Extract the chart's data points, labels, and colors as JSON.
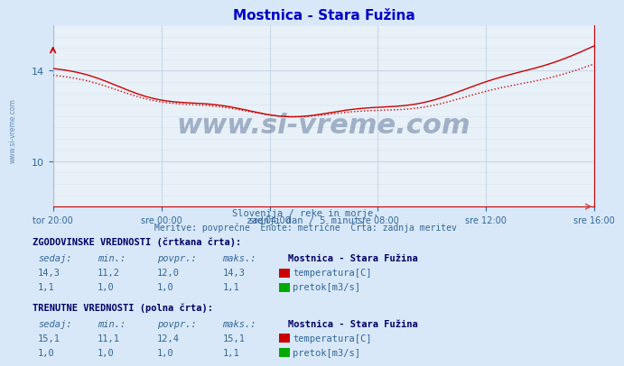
{
  "title": "Mostnica - Stara Fužina",
  "bg_color": "#d8e8f8",
  "plot_bg_color": "#e8f0f8",
  "grid_color": "#c8d8e8",
  "x_labels": [
    "tor 20:00",
    "sre 00:00",
    "sre 04:00",
    "sre 08:00",
    "sre 12:00",
    "sre 16:00"
  ],
  "x_ticks": [
    0,
    48,
    96,
    144,
    192,
    240
  ],
  "n_points": 241,
  "y_min": 8.0,
  "y_max": 16.0,
  "y_ticks": [
    10,
    14
  ],
  "temp_color": "#cc0000",
  "flow_color": "#00aa00",
  "watermark_color": "#1a3a6a",
  "subtitle_lines": [
    "Slovenija / reke in morje.",
    "zadnji dan / 5 minut.",
    "Meritve: povprečne  Enote: metrične  Črta: zadnja meritev"
  ],
  "hist_label": "ZGODOVINSKE VREDNOSTI (črtkana črta):",
  "curr_label": "TRENUTNE VREDNOSTI (polna črta):",
  "col_headers": [
    "sedaj:",
    "min.:",
    "povpr.:",
    "maks.:"
  ],
  "station_name": "Mostnica - Stara Fužina",
  "hist_temp": {
    "sedaj": "14,3",
    "min": "11,2",
    "povpr": "12,0",
    "maks": "14,3"
  },
  "hist_flow": {
    "sedaj": "1,1",
    "min": "1,0",
    "povpr": "1,0",
    "maks": "1,1"
  },
  "curr_temp": {
    "sedaj": "15,1",
    "min": "11,1",
    "povpr": "12,4",
    "maks": "15,1"
  },
  "curr_flow": {
    "sedaj": "1,0",
    "min": "1,0",
    "povpr": "1,0",
    "maks": "1,1"
  },
  "temp_label": "temperatura[C]",
  "flow_label": "pretok[m3/s]",
  "axis_label_color": "#336699",
  "title_color": "#0000cc"
}
